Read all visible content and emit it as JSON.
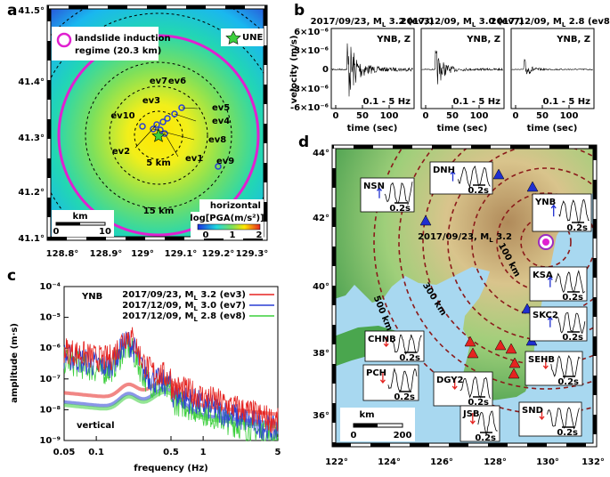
{
  "a": {
    "label": "a",
    "yticks": [
      "41.5°",
      "41.4°",
      "41.3°",
      "41.2°",
      "41.1°"
    ],
    "xticks": [
      "128.8°",
      "128.9°",
      "129°",
      "129.1°",
      "129.2°",
      "129.3°"
    ],
    "legend": [
      "landslide induction",
      "regime (20.3 km)"
    ],
    "station": "UNE",
    "events": [
      "ev1",
      "ev2",
      "ev3",
      "ev4",
      "ev5",
      "ev6",
      "ev7",
      "ev8",
      "ev9",
      "ev10"
    ],
    "rings": [
      "5 km",
      "15 km"
    ],
    "component": "horizontal",
    "colorbar": {
      "title": "log[PGA(m/s²)]",
      "ticks": [
        "0",
        "1",
        "2"
      ]
    },
    "scale": {
      "unit": "km",
      "ticks": [
        "0",
        "10"
      ]
    }
  },
  "b": {
    "label": "b",
    "ylabel": "velocity (m/s)",
    "yticks": [
      "6×10⁻⁶",
      "3×10⁻⁶",
      "0",
      "-3×10⁻⁶",
      "-6×10⁻⁶"
    ],
    "traces": [
      {
        "pre": "2017/09/23, M",
        "sub": "L",
        "post": " 3.2 (ev3)",
        "station": "YNB, Z",
        "band": "0.1 - 5 Hz"
      },
      {
        "pre": "2017/12/09, M",
        "sub": "L",
        "post": " 3.0 (ev7)",
        "station": "YNB, Z",
        "band": "0.1 - 5 Hz"
      },
      {
        "pre": "2017/12/09, M",
        "sub": "L",
        "post": " 2.8 (ev8)",
        "station": "YNB, Z",
        "band": "0.1 - 5 Hz"
      }
    ],
    "xticks": [
      "0",
      "50",
      "100"
    ],
    "xlabel": "time (sec)"
  },
  "c": {
    "label": "c",
    "ylabel": "amplitude (m·s)",
    "xlabel": "frequency (Hz)",
    "yticks": [
      "10⁻⁴",
      "10⁻⁵",
      "10⁻⁶",
      "10⁻⁷",
      "10⁻⁸",
      "10⁻⁹"
    ],
    "xticks": [
      "0.05",
      "0.1",
      "0.5",
      "1",
      "5"
    ],
    "station": "YNB",
    "component": "vertical",
    "legend": [
      {
        "pre": "2017/09/23, M",
        "sub": "L",
        "post": " 3.2 (ev3)",
        "color": "#e52421"
      },
      {
        "pre": "2017/12/09, M",
        "sub": "L",
        "post": " 3.0 (ev7)",
        "color": "#2a3fd4"
      },
      {
        "pre": "2017/12/09, M",
        "sub": "L",
        "post": " 2.8 (ev8)",
        "color": "#3ccf3c"
      }
    ]
  },
  "d": {
    "label": "d",
    "yticks": [
      "44°",
      "42°",
      "40°",
      "38°",
      "36°"
    ],
    "xticks": [
      "122°",
      "124°",
      "126°",
      "128°",
      "130°",
      "132°"
    ],
    "event": {
      "pre": "2017/09/23, M",
      "sub": "L",
      "post": " 3.2"
    },
    "distances": [
      "500 km",
      "300 km",
      "100 km"
    ],
    "stations": [
      {
        "name": "NSN",
        "scale": "0.2s"
      },
      {
        "name": "DNH",
        "scale": "0.2s"
      },
      {
        "name": "YNB",
        "scale": "0.2s"
      },
      {
        "name": "KSA",
        "scale": "0.2s"
      },
      {
        "name": "SKC2",
        "scale": "0.2s"
      },
      {
        "name": "CHNB",
        "scale": "0.2s"
      },
      {
        "name": "SEHB",
        "scale": "0.2s"
      },
      {
        "name": "PCH",
        "scale": "0.2s"
      },
      {
        "name": "DGY2",
        "scale": "0.2s"
      },
      {
        "name": "JSB",
        "scale": "0.2s"
      },
      {
        "name": "SND",
        "scale": "0.2s"
      }
    ],
    "scale": {
      "unit": "km",
      "ticks": [
        "0",
        "200"
      ]
    }
  }
}
